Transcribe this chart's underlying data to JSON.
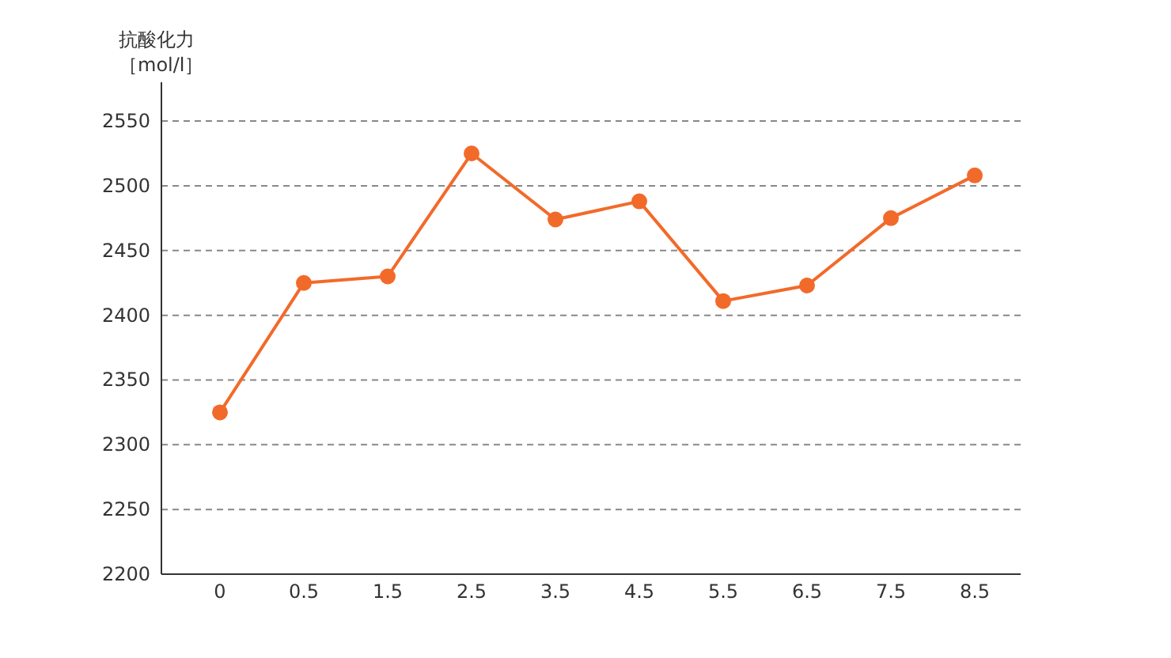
{
  "chart_data": {
    "type": "line",
    "ylabel": "抗酸化力［mol/l］",
    "categories": [
      "0",
      "0.5",
      "1.5",
      "2.5",
      "3.5",
      "4.5",
      "5.5",
      "6.5",
      "7.5",
      "8.5"
    ],
    "series": [
      {
        "color": "#f26a2a",
        "values": [
          2325,
          2425,
          2430,
          2525,
          2474,
          2488,
          2411,
          2423,
          2475,
          2508
        ]
      }
    ],
    "ylim": [
      2200,
      2580
    ],
    "yticks": [
      2200,
      2250,
      2300,
      2350,
      2400,
      2450,
      2500,
      2550
    ],
    "grid": "y",
    "marker": "circle",
    "line_style": "solid"
  }
}
